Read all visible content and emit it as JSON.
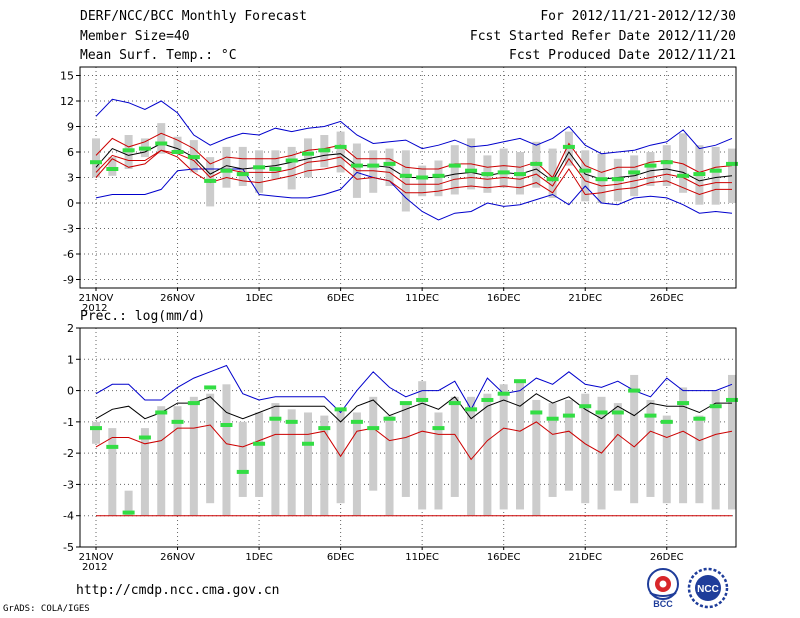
{
  "header": {
    "title": "DERF/NCC/BCC Monthly Forecast",
    "member_size": "Member Size=40",
    "variable": "Mean Surf. Temp.: °C",
    "forecast_for": "For 2012/11/21-2012/12/30",
    "started_refer": "Fcst Started Refer Date 2012/11/20",
    "produced": "Fcst Produced Date 2012/11/21"
  },
  "footer": {
    "url": "http://cmdp.ncc.cma.gov.cn",
    "grads": "GrADS: COLA/IGES"
  },
  "logos": {
    "bcc_text": "BCC",
    "ncc_text": "NCC"
  },
  "colors": {
    "max_line": "#0000cc",
    "min_line": "#cc0000",
    "inner_red": "#cc0000",
    "mean_line": "#000000",
    "median_bar": "#33dd44",
    "box": "#cccccc"
  },
  "chart_data": [
    {
      "type": "box-line",
      "title": "Mean Surf. Temp.: °C",
      "ylim": [
        -10,
        16
      ],
      "yticks": [
        -9,
        -6,
        -3,
        0,
        3,
        6,
        9,
        12,
        15
      ],
      "xticks": [
        {
          "day": 1,
          "label": "21NOV",
          "sub": "2012"
        },
        {
          "day": 6,
          "label": "26NOV"
        },
        {
          "day": 11,
          "label": "1DEC"
        },
        {
          "day": 16,
          "label": "6DEC"
        },
        {
          "day": 21,
          "label": "11DEC"
        },
        {
          "day": 26,
          "label": "16DEC"
        },
        {
          "day": 31,
          "label": "21DEC"
        },
        {
          "day": 36,
          "label": "26DEC"
        }
      ],
      "days": 40,
      "series": [
        {
          "name": "max",
          "values": [
            0.6,
            1,
            1,
            1,
            1.6,
            3.8,
            4,
            4,
            4,
            4,
            1,
            0.8,
            0.6,
            0.6,
            1,
            1.6,
            3.6,
            3,
            2.6,
            0.6,
            -1,
            -2,
            -1.2,
            -1,
            0,
            -0.4,
            -0.2,
            0.4,
            1,
            -0.2,
            2,
            0,
            -0.2,
            0.6,
            0.8,
            0.6,
            -0.2,
            -1.2,
            -1,
            -1.2
          ]
        },
        {
          "name": "max_top",
          "values": [
            10.2,
            12.2,
            11.8,
            11,
            12,
            10.6,
            8,
            6.8,
            7.6,
            8.2,
            8,
            8.8,
            8.4,
            8.8,
            9,
            9.6,
            8,
            7,
            7.2,
            7.4,
            6.4,
            6.8,
            7.4,
            6.6,
            6.8,
            7.2,
            7.6,
            6.8,
            7.6,
            9,
            6.8,
            5.8,
            6,
            6.2,
            6.8,
            7.2,
            8.6,
            6.4,
            6.8,
            7.6
          ]
        },
        {
          "name": "inner_upper",
          "values": [
            5.6,
            7.6,
            6.6,
            7.2,
            8.2,
            7.4,
            6.4,
            4.6,
            5.4,
            5.2,
            5.2,
            5.2,
            5.6,
            6.2,
            6.4,
            6.8,
            5.2,
            5.2,
            5.2,
            4.2,
            4,
            4,
            4.6,
            4.6,
            4.2,
            4.4,
            4.2,
            4.8,
            3,
            7,
            4.4,
            3.6,
            4.2,
            4.2,
            4.8,
            5,
            4.6,
            3.6,
            4.2,
            4.4
          ]
        },
        {
          "name": "mean",
          "values": [
            4.2,
            6.4,
            5.6,
            6,
            7,
            6.4,
            5.4,
            3.4,
            4.4,
            4,
            4.2,
            4.4,
            4.8,
            5.2,
            5.6,
            5.8,
            4.4,
            4.4,
            4.2,
            3,
            3,
            3,
            3.4,
            3.6,
            3.2,
            3.6,
            3.4,
            4,
            2.6,
            6,
            3.4,
            2.8,
            3,
            3.2,
            3.8,
            4,
            3.6,
            2.6,
            3,
            3.2
          ]
        },
        {
          "name": "inner_lower",
          "values": [
            3.6,
            5.6,
            5,
            5,
            6.2,
            5.8,
            5,
            3,
            4,
            3.6,
            3.6,
            3.6,
            4,
            4.8,
            5,
            5.4,
            3.8,
            3.8,
            3.6,
            2.2,
            2.2,
            2.2,
            2.8,
            3,
            2.8,
            3,
            2.8,
            3.4,
            2,
            5.2,
            2.6,
            2,
            2.2,
            2.6,
            3,
            3.4,
            3,
            2,
            2.4,
            2.4
          ]
        },
        {
          "name": "min",
          "values": [
            3,
            5.2,
            4.2,
            4.6,
            6.2,
            5.4,
            3.6,
            2.4,
            3,
            2.6,
            2.4,
            2.8,
            3.2,
            3.8,
            4,
            4.4,
            2.8,
            3,
            2.6,
            1.2,
            1.2,
            1.4,
            1.8,
            2,
            1.8,
            2,
            1.8,
            2.4,
            1.2,
            4,
            1,
            1.2,
            1.6,
            1.8,
            2.4,
            2.6,
            1.8,
            1,
            1.6,
            1.6
          ]
        },
        {
          "name": "median",
          "values": [
            4.8,
            4,
            6.2,
            6.4,
            7,
            6,
            5.4,
            2.6,
            3.8,
            3.4,
            4.2,
            4,
            5,
            5.8,
            6.2,
            6.6,
            4.4,
            4.4,
            4.6,
            3.2,
            3,
            3.2,
            4.4,
            3.8,
            3.4,
            3.6,
            3.4,
            4.6,
            2.8,
            6.6,
            3.8,
            2.8,
            2.8,
            3.6,
            4.4,
            4.8,
            3.2,
            3.4,
            3.8,
            4.6
          ]
        }
      ],
      "boxes_low": [
        3,
        3.2,
        4,
        5.4,
        5.8,
        5.8,
        3.6,
        -0.4,
        1.8,
        2,
        1.2,
        2.8,
        1.6,
        3,
        4.2,
        3.6,
        0.6,
        1.2,
        2,
        -1,
        0.8,
        0.8,
        1,
        1.6,
        1.2,
        1.8,
        1,
        1.8,
        0.6,
        4.4,
        0.2,
        0,
        0.2,
        0.8,
        2,
        2,
        1.2,
        -0.2,
        -0.2,
        0
      ],
      "boxes_high": [
        7.6,
        5.4,
        8,
        7.6,
        9.4,
        7.8,
        7.4,
        5.4,
        6.6,
        6.6,
        6.2,
        6.2,
        6.6,
        7.6,
        8,
        8.4,
        7,
        6.2,
        6.4,
        6.2,
        4.4,
        5,
        6.8,
        7.6,
        5.6,
        6.4,
        6,
        7.2,
        6.4,
        8.4,
        6.2,
        5.8,
        5.2,
        5.6,
        6,
        6.8,
        8.2,
        6.8,
        6.6,
        6.4
      ]
    },
    {
      "type": "box-line",
      "title": "Prec.: log(mm/d)",
      "ylim": [
        -5,
        2
      ],
      "yticks": [
        -5,
        -4,
        -3,
        -2,
        -1,
        0,
        1,
        2
      ],
      "xticks": [
        {
          "day": 1,
          "label": "21NOV",
          "sub": "2012"
        },
        {
          "day": 6,
          "label": "26NOV"
        },
        {
          "day": 11,
          "label": "1DEC"
        },
        {
          "day": 16,
          "label": "6DEC"
        },
        {
          "day": 21,
          "label": "11DEC"
        },
        {
          "day": 26,
          "label": "16DEC"
        },
        {
          "day": 31,
          "label": "21DEC"
        },
        {
          "day": 36,
          "label": "26DEC"
        }
      ],
      "days": 40,
      "series": [
        {
          "name": "max",
          "values": [
            -0.1,
            0.2,
            0.2,
            -0.3,
            -0.3,
            0.1,
            0.4,
            0.6,
            0.8,
            -0.1,
            -0.3,
            -0.2,
            -0.2,
            -0.2,
            -0.2,
            -0.7,
            0,
            0.6,
            0.1,
            -0.2,
            0,
            0,
            0.3,
            -0.6,
            0.4,
            -0.1,
            0,
            0.4,
            0.2,
            0.6,
            0.2,
            0.1,
            0.3,
            0,
            -0.2,
            0.4,
            0,
            0,
            0,
            0.2
          ]
        },
        {
          "name": "mean",
          "values": [
            -0.9,
            -0.6,
            -0.5,
            -0.9,
            -0.7,
            -0.4,
            -0.4,
            -0.2,
            -0.7,
            -0.9,
            -0.7,
            -0.5,
            -0.5,
            -0.5,
            -0.5,
            -1,
            -0.5,
            -0.3,
            -0.8,
            -0.6,
            -0.4,
            -0.6,
            -0.2,
            -0.9,
            -0.5,
            -0.3,
            -0.5,
            -0.1,
            -0.4,
            -0.2,
            -0.6,
            -0.9,
            -0.5,
            -0.8,
            -0.4,
            -0.5,
            -0.5,
            -0.7,
            -0.4,
            -0.4
          ]
        },
        {
          "name": "inner",
          "values": [
            -1.8,
            -1.5,
            -1.5,
            -1.7,
            -1.6,
            -1.2,
            -1.2,
            -1.1,
            -1.7,
            -1.8,
            -1.6,
            -1.4,
            -1.4,
            -1.4,
            -1.3,
            -2.1,
            -1.3,
            -1.2,
            -1.6,
            -1.5,
            -1.3,
            -1.4,
            -1.4,
            -2.2,
            -1.6,
            -1.2,
            -1.3,
            -1.0,
            -1.4,
            -1.3,
            -1.7,
            -2.0,
            -1.4,
            -1.8,
            -1.3,
            -1.5,
            -1.3,
            -1.6,
            -1.4,
            -1.3
          ]
        },
        {
          "name": "min",
          "values": [
            -4,
            -4,
            -4,
            -4,
            -4,
            -4,
            -4,
            -4,
            -4,
            -4,
            -4,
            -4,
            -4,
            -4,
            -4,
            -4,
            -4,
            -4,
            -4,
            -4,
            -4,
            -4,
            -4,
            -4,
            -4,
            -4,
            -4,
            -4,
            -4,
            -4,
            -4,
            -4,
            -4,
            -4,
            -4,
            -4,
            -4,
            -4,
            -4,
            -4
          ]
        },
        {
          "name": "median",
          "values": [
            -1.2,
            -1.8,
            -3.9,
            -1.5,
            -0.7,
            -1.0,
            -0.4,
            0.1,
            -1.1,
            -2.6,
            -1.7,
            -0.9,
            -1.0,
            -1.7,
            -1.2,
            -0.6,
            -1.0,
            -1.2,
            -0.9,
            -0.4,
            -0.3,
            -1.2,
            -0.4,
            -0.6,
            -0.3,
            -0.1,
            0.3,
            -0.7,
            -0.9,
            -0.8,
            -0.5,
            -0.7,
            -0.7,
            0,
            -0.8,
            -1.0,
            -0.4,
            -0.9,
            -0.5,
            -0.3
          ]
        }
      ],
      "boxes_low": [
        -1.7,
        -4,
        -4,
        -4,
        -4,
        -4,
        -4,
        -3.6,
        -4,
        -3.4,
        -3.4,
        -4,
        -4,
        -4,
        -4,
        -3.6,
        -4,
        -3.2,
        -4,
        -3.4,
        -3.8,
        -3.8,
        -3.4,
        -4,
        -4,
        -3.8,
        -3.8,
        -4,
        -3.4,
        -3.2,
        -3.6,
        -3.8,
        -3.2,
        -3.6,
        -3.4,
        -3.6,
        -3.6,
        -3.6,
        -3.8,
        -3.8
      ],
      "boxes_high": [
        -1.0,
        -1.2,
        -3.2,
        -1.2,
        -0.5,
        -0.5,
        -0.2,
        -0.1,
        0.2,
        -1.0,
        -0.7,
        -0.4,
        -0.6,
        -0.7,
        -0.8,
        -0.6,
        -0.7,
        -0.2,
        -0.8,
        -0.4,
        0.3,
        -0.7,
        -0.2,
        -0.2,
        -0.1,
        0.2,
        0.3,
        -0.3,
        -0.4,
        -0.3,
        -0.1,
        -0.2,
        -0.4,
        0.5,
        -0.3,
        -0.8,
        0.1,
        -0.8,
        0,
        0.5
      ]
    }
  ]
}
